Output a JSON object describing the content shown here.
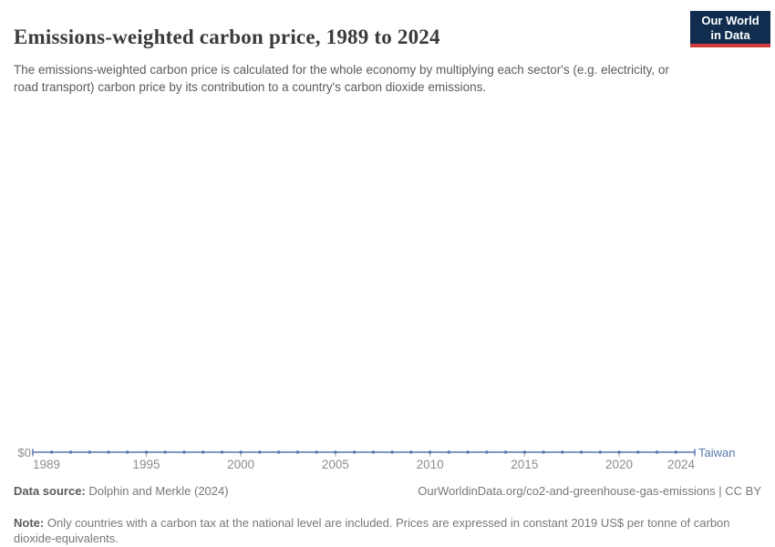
{
  "header": {
    "title": "Emissions-weighted carbon price, 1989 to 2024",
    "subtitle": "The emissions-weighted carbon price is calculated for the whole economy by multiplying each sector's (e.g. electricity, or road transport) carbon price by its contribution to a country's carbon dioxide emissions.",
    "logo": {
      "line1": "Our World",
      "line2": "in Data",
      "bg_color": "#102d4f",
      "accent_color": "#d13d3d"
    }
  },
  "chart_data": {
    "type": "line",
    "title": "Emissions-weighted carbon price, 1989 to 2024",
    "x": [
      1989,
      1990,
      1991,
      1992,
      1993,
      1994,
      1995,
      1996,
      1997,
      1998,
      1999,
      2000,
      2001,
      2002,
      2003,
      2004,
      2005,
      2006,
      2007,
      2008,
      2009,
      2010,
      2011,
      2012,
      2013,
      2014,
      2015,
      2016,
      2017,
      2018,
      2019,
      2020,
      2021,
      2022,
      2023,
      2024
    ],
    "series": [
      {
        "name": "Taiwan",
        "color": "#5878af",
        "values": [
          0,
          0,
          0,
          0,
          0,
          0,
          0,
          0,
          0,
          0,
          0,
          0,
          0,
          0,
          0,
          0,
          0,
          0,
          0,
          0,
          0,
          0,
          0,
          0,
          0,
          0,
          0,
          0,
          0,
          0,
          0,
          0,
          0,
          0,
          0,
          0
        ]
      }
    ],
    "x_ticks": [
      1989,
      1995,
      2000,
      2005,
      2010,
      2015,
      2020,
      2024
    ],
    "y_axis_label": "$0",
    "ylim": [
      0,
      0
    ],
    "grid": "off",
    "legend_position": "end-of-line"
  },
  "footer": {
    "data_source_label": "Data source:",
    "data_source": "Dolphin and Merkle (2024)",
    "attribution": "OurWorldinData.org/co2-and-greenhouse-gas-emissions | CC BY",
    "note_label": "Note:",
    "note": "Only countries with a carbon tax at the national level are included. Prices are expressed in constant 2019 US$ per tonne of carbon dioxide-equivalents."
  }
}
